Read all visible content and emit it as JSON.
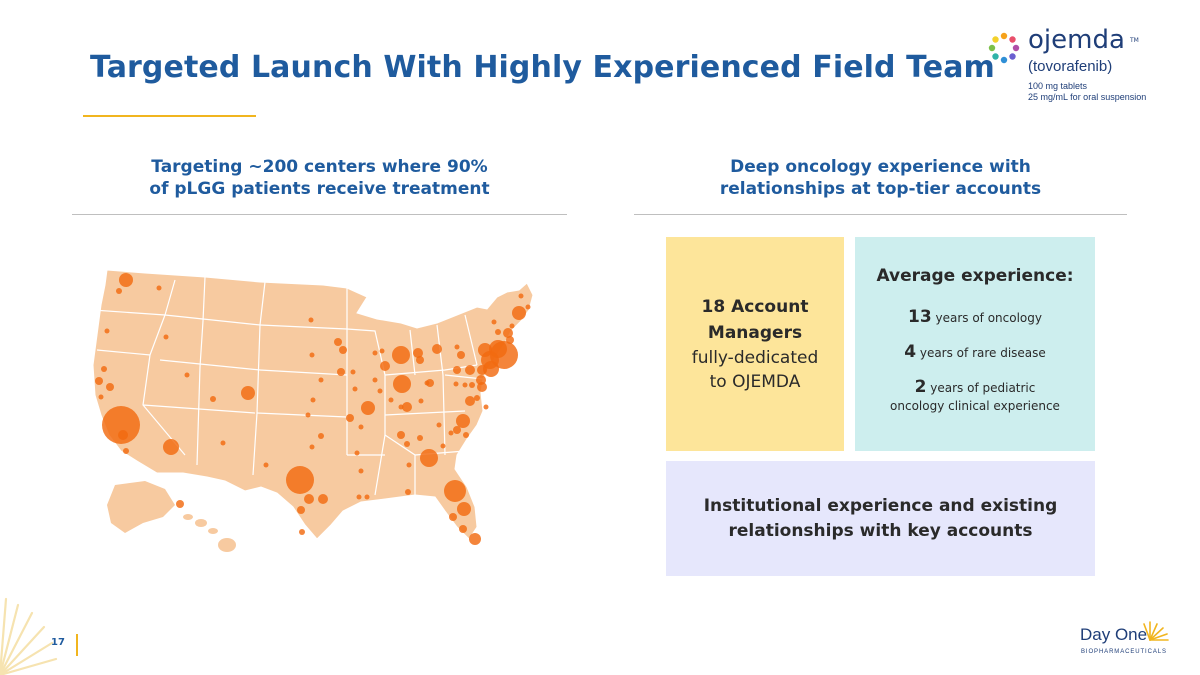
{
  "slide": {
    "title": "Targeted Launch With Highly Experienced Field Team",
    "page_number": "17"
  },
  "logo": {
    "brand": "ojemda",
    "trademark": "TM",
    "generic_name": "(tovorafenib)",
    "dose_1": "100 mg tablets",
    "dose_2": "25 mg/mL for oral suspension"
  },
  "left_column": {
    "heading_line1": "Targeting ~200 centers where 90%",
    "heading_line2": "of pLGG patients receive treatment"
  },
  "right_column": {
    "heading_line1": "Deep oncology experience with",
    "heading_line2": "relationships at top-tier accounts"
  },
  "managers_box": {
    "bold_line1": "18 Account",
    "bold_line2": "Managers",
    "line3": "fully-dedicated",
    "line4": "to OJEMDA"
  },
  "experience_box": {
    "title": "Average experience:",
    "items": [
      {
        "number": "13",
        "text": " years of oncology"
      },
      {
        "number": "4",
        "text": " years of rare disease"
      },
      {
        "number": "2",
        "text": " years of pediatric",
        "text2": "oncology clinical experience"
      }
    ]
  },
  "institutional_box": {
    "line1": "Institutional experience and existing",
    "line2": "relationships with key accounts"
  },
  "footer": {
    "company": "Day One",
    "company_sub": "BIOPHARMACEUTICALS"
  },
  "colors": {
    "title": "#1f5b9e",
    "accent": "#f1b51f",
    "map_fill": "#f7caa0",
    "marker": "#f26a10",
    "managers_bg": "#fde59a",
    "experience_bg": "#cdeeee",
    "institutional_bg": "#e6e7fc"
  }
}
